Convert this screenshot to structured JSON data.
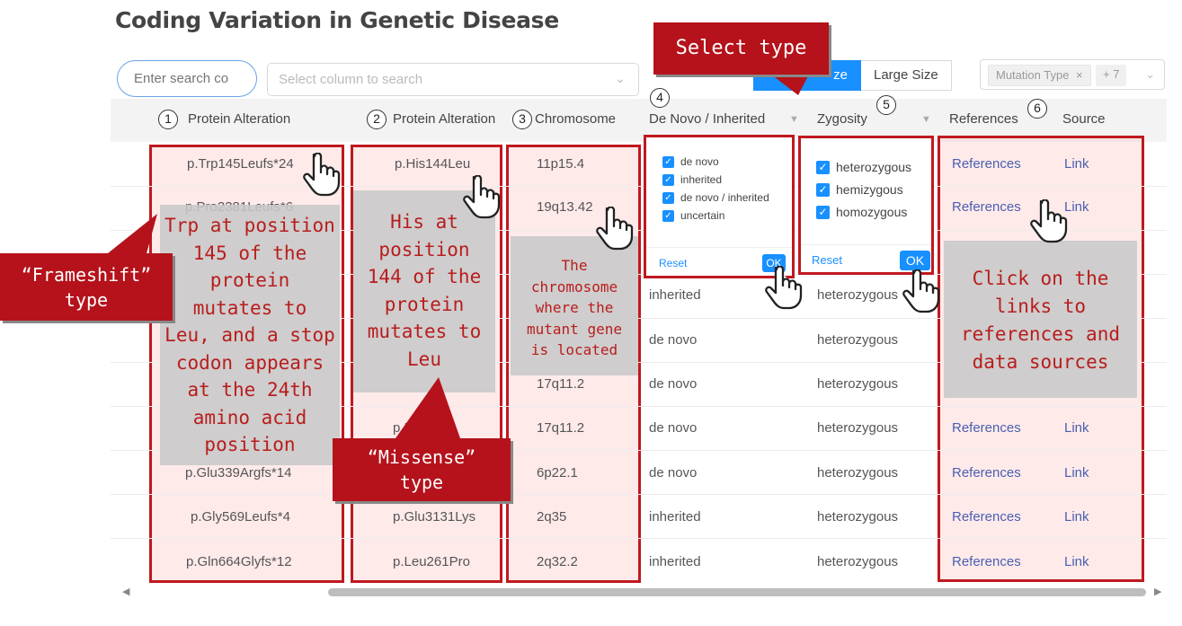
{
  "title": "Coding Variation in Genetic Disease",
  "search": {
    "placeholder": "Enter search co",
    "column_placeholder": "Select column to search"
  },
  "size_toggle": {
    "active": "Small Size",
    "active_visible": "ze",
    "inactive": "Large Size"
  },
  "type_filter": {
    "tag": "Mutation Type",
    "tag_close": "×",
    "more": "+ 7",
    "chevron": "⌄"
  },
  "headers": {
    "col1": "Protein Alteration",
    "col2": "Protein Alteration",
    "col3": "Chromosome",
    "col4": "De Novo / Inherited",
    "col5": "Zygosity",
    "col6": "References",
    "col7": "Source"
  },
  "circle_numbers": [
    "1",
    "2",
    "3",
    "4",
    "5",
    "6"
  ],
  "rows": [
    {
      "p1": "p.Trp145Leufs*24",
      "p2": "p.His144Leu",
      "chrom": "11p15.4",
      "denovo": "",
      "zyg": "",
      "ref": "References",
      "src": "Link"
    },
    {
      "p1": "p.Pro2381Leufs*6",
      "p2": "",
      "chrom": "19q13.42",
      "denovo": "",
      "zyg": "",
      "ref": "References",
      "src": "Link"
    },
    {
      "p1": "",
      "p2": "",
      "chrom": "",
      "denovo": "",
      "zyg": "",
      "ref": "",
      "src": ""
    },
    {
      "p1": "",
      "p2": "",
      "chrom": "",
      "denovo": "inherited",
      "zyg": "heterozygous",
      "ref": "",
      "src": ""
    },
    {
      "p1": "",
      "p2": "",
      "chrom": "",
      "denovo": "de novo",
      "zyg": "heterozygous",
      "ref": "",
      "src": ""
    },
    {
      "p1": "",
      "p2": "",
      "chrom": "17q11.2",
      "denovo": "de novo",
      "zyg": "heterozygous",
      "ref": "",
      "src": ""
    },
    {
      "p1": "",
      "p2": "p.Leu1",
      "chrom": "17q11.2",
      "denovo": "de novo",
      "zyg": "heterozygous",
      "ref": "References",
      "src": "Link"
    },
    {
      "p1": "p.Glu339Argfs*14",
      "p2": "",
      "chrom": "6p22.1",
      "denovo": "de novo",
      "zyg": "heterozygous",
      "ref": "References",
      "src": "Link"
    },
    {
      "p1": "p.Gly569Leufs*4",
      "p2": "p.Glu3131Lys",
      "chrom": "2q35",
      "denovo": "inherited",
      "zyg": "heterozygous",
      "ref": "References",
      "src": "Link"
    },
    {
      "p1": "p.Gln664Glyfs*12",
      "p2": "p.Leu261Pro",
      "chrom": "2q32.2",
      "denovo": "inherited",
      "zyg": "heterozygous",
      "ref": "References",
      "src": "Link"
    }
  ],
  "denovo_filter": {
    "options": [
      "de novo",
      "inherited",
      "de novo / inherited",
      "uncertain"
    ],
    "reset": "Reset",
    "ok": "OK"
  },
  "zygosity_filter": {
    "options": [
      "heterozygous",
      "hemizygous",
      "homozygous"
    ],
    "reset": "Reset",
    "ok": "OK"
  },
  "annotations": {
    "select_type": "Select type",
    "frameshift": [
      "“Frameshift”",
      "type"
    ],
    "missense": [
      "“Missense”",
      "type"
    ],
    "frameshift_note": [
      "Trp at position",
      "145 of the",
      "protein",
      "mutates to",
      "Leu, and a stop",
      "codon appears",
      "at the  24th",
      "amino acid",
      "position"
    ],
    "missense_note": [
      "His at",
      "position",
      "144 of the",
      "protein",
      "mutates to",
      "Leu"
    ],
    "chromosome_note": [
      "The",
      "chromosome",
      "where the",
      "mutant gene",
      "is located"
    ],
    "links_note": [
      "Click on the",
      "links to",
      "references and",
      "data sources"
    ]
  },
  "colors": {
    "highlight_border": "#c0181f",
    "callout_bg": "#b5121b",
    "accent": "#1890ff",
    "note_text": "#b81d1d"
  },
  "icons": [
    "pointing-hand-icon",
    "check-icon",
    "filter-icon",
    "chevron-down-icon",
    "close-icon",
    "scroll-left-icon",
    "scroll-right-icon"
  ]
}
